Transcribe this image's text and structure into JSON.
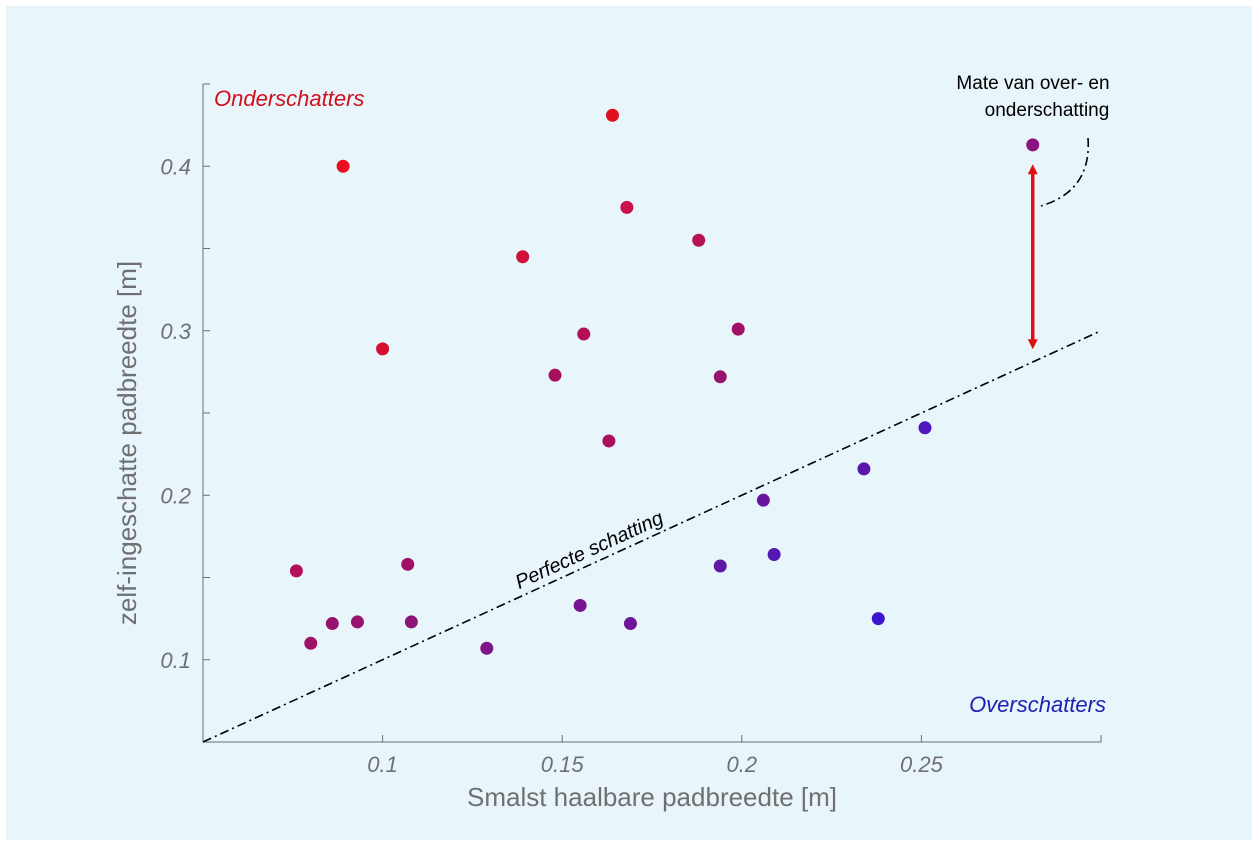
{
  "chart_data": {
    "type": "scatter",
    "xlabel": "Smalst haalbare padbreedte [m]",
    "ylabel": "zelf-ingeschatte padbreedte [m]",
    "xlim": [
      0.05,
      0.3
    ],
    "ylim": [
      0.05,
      0.45
    ],
    "xticks": [
      0.1,
      0.15,
      0.2,
      0.25
    ],
    "xtick_labels": [
      "0.1",
      "0.15",
      "0.2",
      "0.25"
    ],
    "yticks": [
      0.1,
      0.2,
      0.3,
      0.4
    ],
    "ytick_labels": [
      "0.1",
      "0.2",
      "0.3",
      "0.4"
    ],
    "grid": false,
    "points": [
      {
        "x": 0.089,
        "y": 0.4,
        "color": "#e8101e"
      },
      {
        "x": 0.1,
        "y": 0.289,
        "color": "#d41030"
      },
      {
        "x": 0.139,
        "y": 0.345,
        "color": "#d0103a"
      },
      {
        "x": 0.164,
        "y": 0.431,
        "color": "#e0101c"
      },
      {
        "x": 0.168,
        "y": 0.375,
        "color": "#c8104a"
      },
      {
        "x": 0.188,
        "y": 0.355,
        "color": "#b41452"
      },
      {
        "x": 0.156,
        "y": 0.298,
        "color": "#b4105a"
      },
      {
        "x": 0.199,
        "y": 0.301,
        "color": "#a01066"
      },
      {
        "x": 0.148,
        "y": 0.273,
        "color": "#a8105e"
      },
      {
        "x": 0.194,
        "y": 0.272,
        "color": "#961470"
      },
      {
        "x": 0.163,
        "y": 0.233,
        "color": "#a8105e"
      },
      {
        "x": 0.076,
        "y": 0.154,
        "color": "#b4105a"
      },
      {
        "x": 0.107,
        "y": 0.158,
        "color": "#a01066"
      },
      {
        "x": 0.08,
        "y": 0.11,
        "color": "#a01066"
      },
      {
        "x": 0.086,
        "y": 0.122,
        "color": "#961470"
      },
      {
        "x": 0.093,
        "y": 0.123,
        "color": "#961470"
      },
      {
        "x": 0.108,
        "y": 0.123,
        "color": "#8c1478"
      },
      {
        "x": 0.129,
        "y": 0.107,
        "color": "#7e1488"
      },
      {
        "x": 0.155,
        "y": 0.133,
        "color": "#781490"
      },
      {
        "x": 0.169,
        "y": 0.122,
        "color": "#6e149a"
      },
      {
        "x": 0.194,
        "y": 0.157,
        "color": "#6018a6"
      },
      {
        "x": 0.206,
        "y": 0.197,
        "color": "#6814a0"
      },
      {
        "x": 0.209,
        "y": 0.164,
        "color": "#5418b4"
      },
      {
        "x": 0.234,
        "y": 0.216,
        "color": "#5a18ae"
      },
      {
        "x": 0.238,
        "y": 0.125,
        "color": "#3c14d2"
      },
      {
        "x": 0.251,
        "y": 0.241,
        "color": "#4e18bc"
      },
      {
        "x": 0.281,
        "y": 0.413,
        "color": "#8a1480"
      }
    ],
    "reference_line": {
      "label": "Perfecte schatting",
      "slope": 1,
      "intercept": 0,
      "style": "dash-dot",
      "color": "#000000"
    },
    "annotations": {
      "top_left": {
        "text": "Onderschatters",
        "color": "#d0101c"
      },
      "bottom_right": {
        "text": "Overschatters",
        "color": "#2020b4"
      },
      "deviation_label": [
        "Mate van over- en",
        "onderschatting"
      ],
      "deviation_arrow": {
        "x": 0.281,
        "y_from": 0.4,
        "y_to": 0.29,
        "color": "#e01010"
      }
    }
  }
}
